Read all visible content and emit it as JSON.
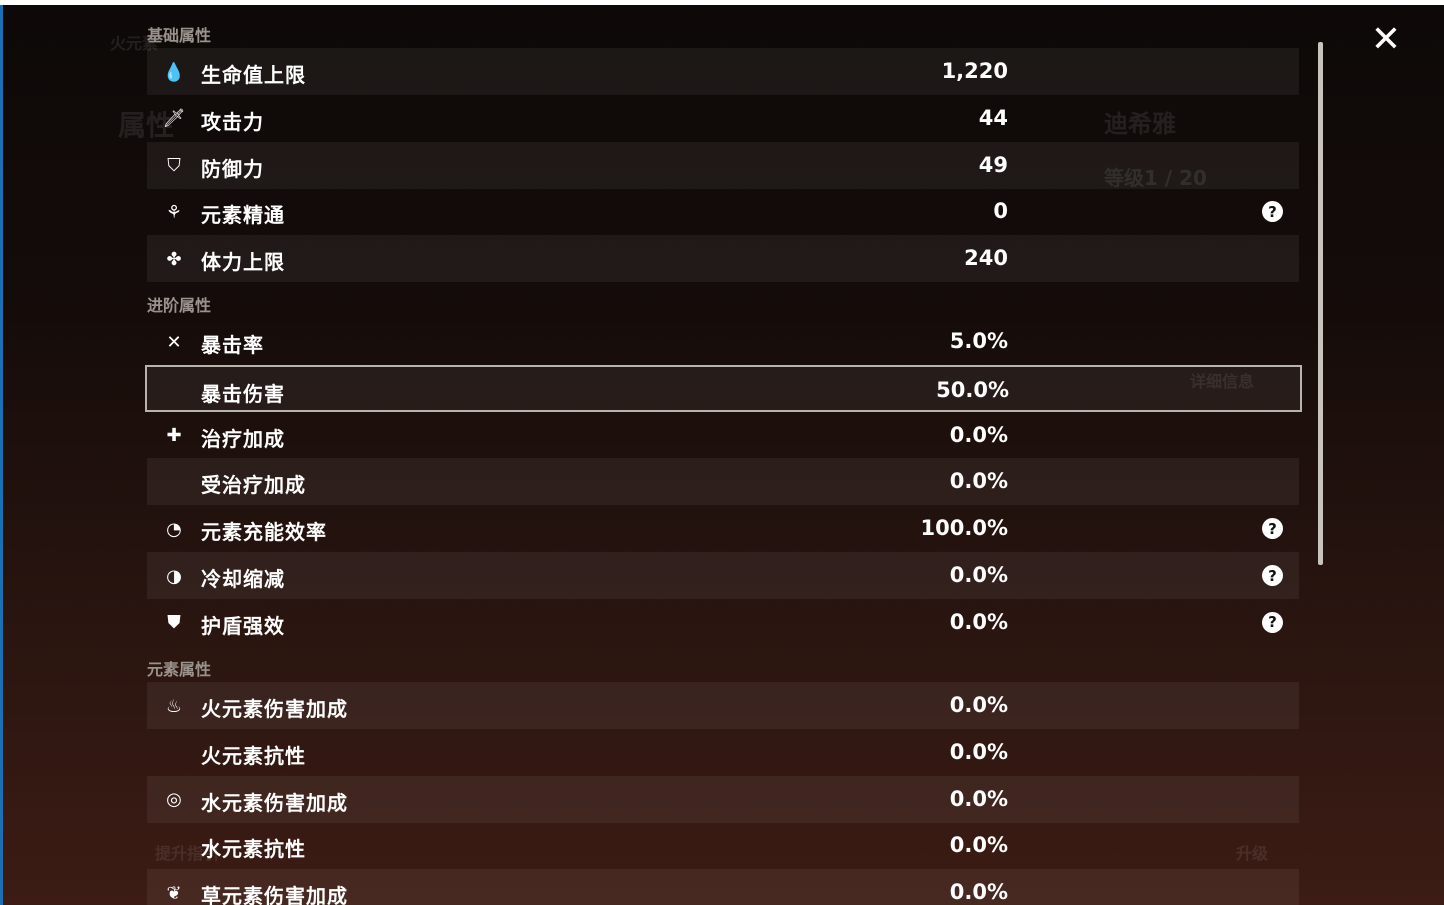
{
  "background": {
    "element_title": "火元素",
    "character_name": "迪希雅",
    "level": "等级1 / 20",
    "tab": "属性",
    "detail_button": "详细信息",
    "upgrade_button": "升级",
    "guide_button": "提升指引"
  },
  "close_icon": "close-icon",
  "sections": [
    {
      "title": "基础属性",
      "rows": [
        {
          "icon": "hp-drop-icon",
          "glyph": "💧",
          "label": "生命值上限",
          "value": "1,220",
          "help": false
        },
        {
          "icon": "sword-icon",
          "glyph": "🗡",
          "label": "攻击力",
          "value": "44",
          "help": false
        },
        {
          "icon": "shield-icon",
          "glyph": "⛉",
          "label": "防御力",
          "value": "49",
          "help": false
        },
        {
          "icon": "elemental-mastery-icon",
          "glyph": "⚘",
          "label": "元素精通",
          "value": "0",
          "help": true
        },
        {
          "icon": "stamina-icon",
          "glyph": "✤",
          "label": "体力上限",
          "value": "240",
          "help": false
        }
      ]
    },
    {
      "title": "进阶属性",
      "rows": [
        {
          "icon": "crit-rate-icon",
          "glyph": "✕",
          "label": "暴击率",
          "value": "5.0%",
          "help": false
        },
        {
          "icon": "",
          "glyph": "",
          "label": "暴击伤害",
          "value": "50.0%",
          "help": false
        },
        {
          "icon": "healing-cross-icon",
          "glyph": "✚",
          "label": "治疗加成",
          "value": "0.0%",
          "help": false
        },
        {
          "icon": "",
          "glyph": "",
          "label": "受治疗加成",
          "value": "0.0%",
          "help": false
        },
        {
          "icon": "energy-recharge-icon",
          "glyph": "◔",
          "label": "元素充能效率",
          "value": "100.0%",
          "help": true
        },
        {
          "icon": "cooldown-icon",
          "glyph": "◑",
          "label": "冷却缩减",
          "value": "0.0%",
          "help": true
        },
        {
          "icon": "shield-strength-icon",
          "glyph": "⛊",
          "label": "护盾强效",
          "value": "0.0%",
          "help": true
        }
      ]
    },
    {
      "title": "元素属性",
      "rows": [
        {
          "icon": "pyro-icon",
          "glyph": "♨",
          "label": "火元素伤害加成",
          "value": "0.0%",
          "help": false
        },
        {
          "icon": "",
          "glyph": "",
          "label": "火元素抗性",
          "value": "0.0%",
          "help": false
        },
        {
          "icon": "hydro-icon",
          "glyph": "◎",
          "label": "水元素伤害加成",
          "value": "0.0%",
          "help": false
        },
        {
          "icon": "",
          "glyph": "",
          "label": "水元素抗性",
          "value": "0.0%",
          "help": false
        },
        {
          "icon": "dendro-icon",
          "glyph": "❦",
          "label": "草元素伤害加成",
          "value": "0.0%",
          "help": false
        }
      ]
    }
  ]
}
